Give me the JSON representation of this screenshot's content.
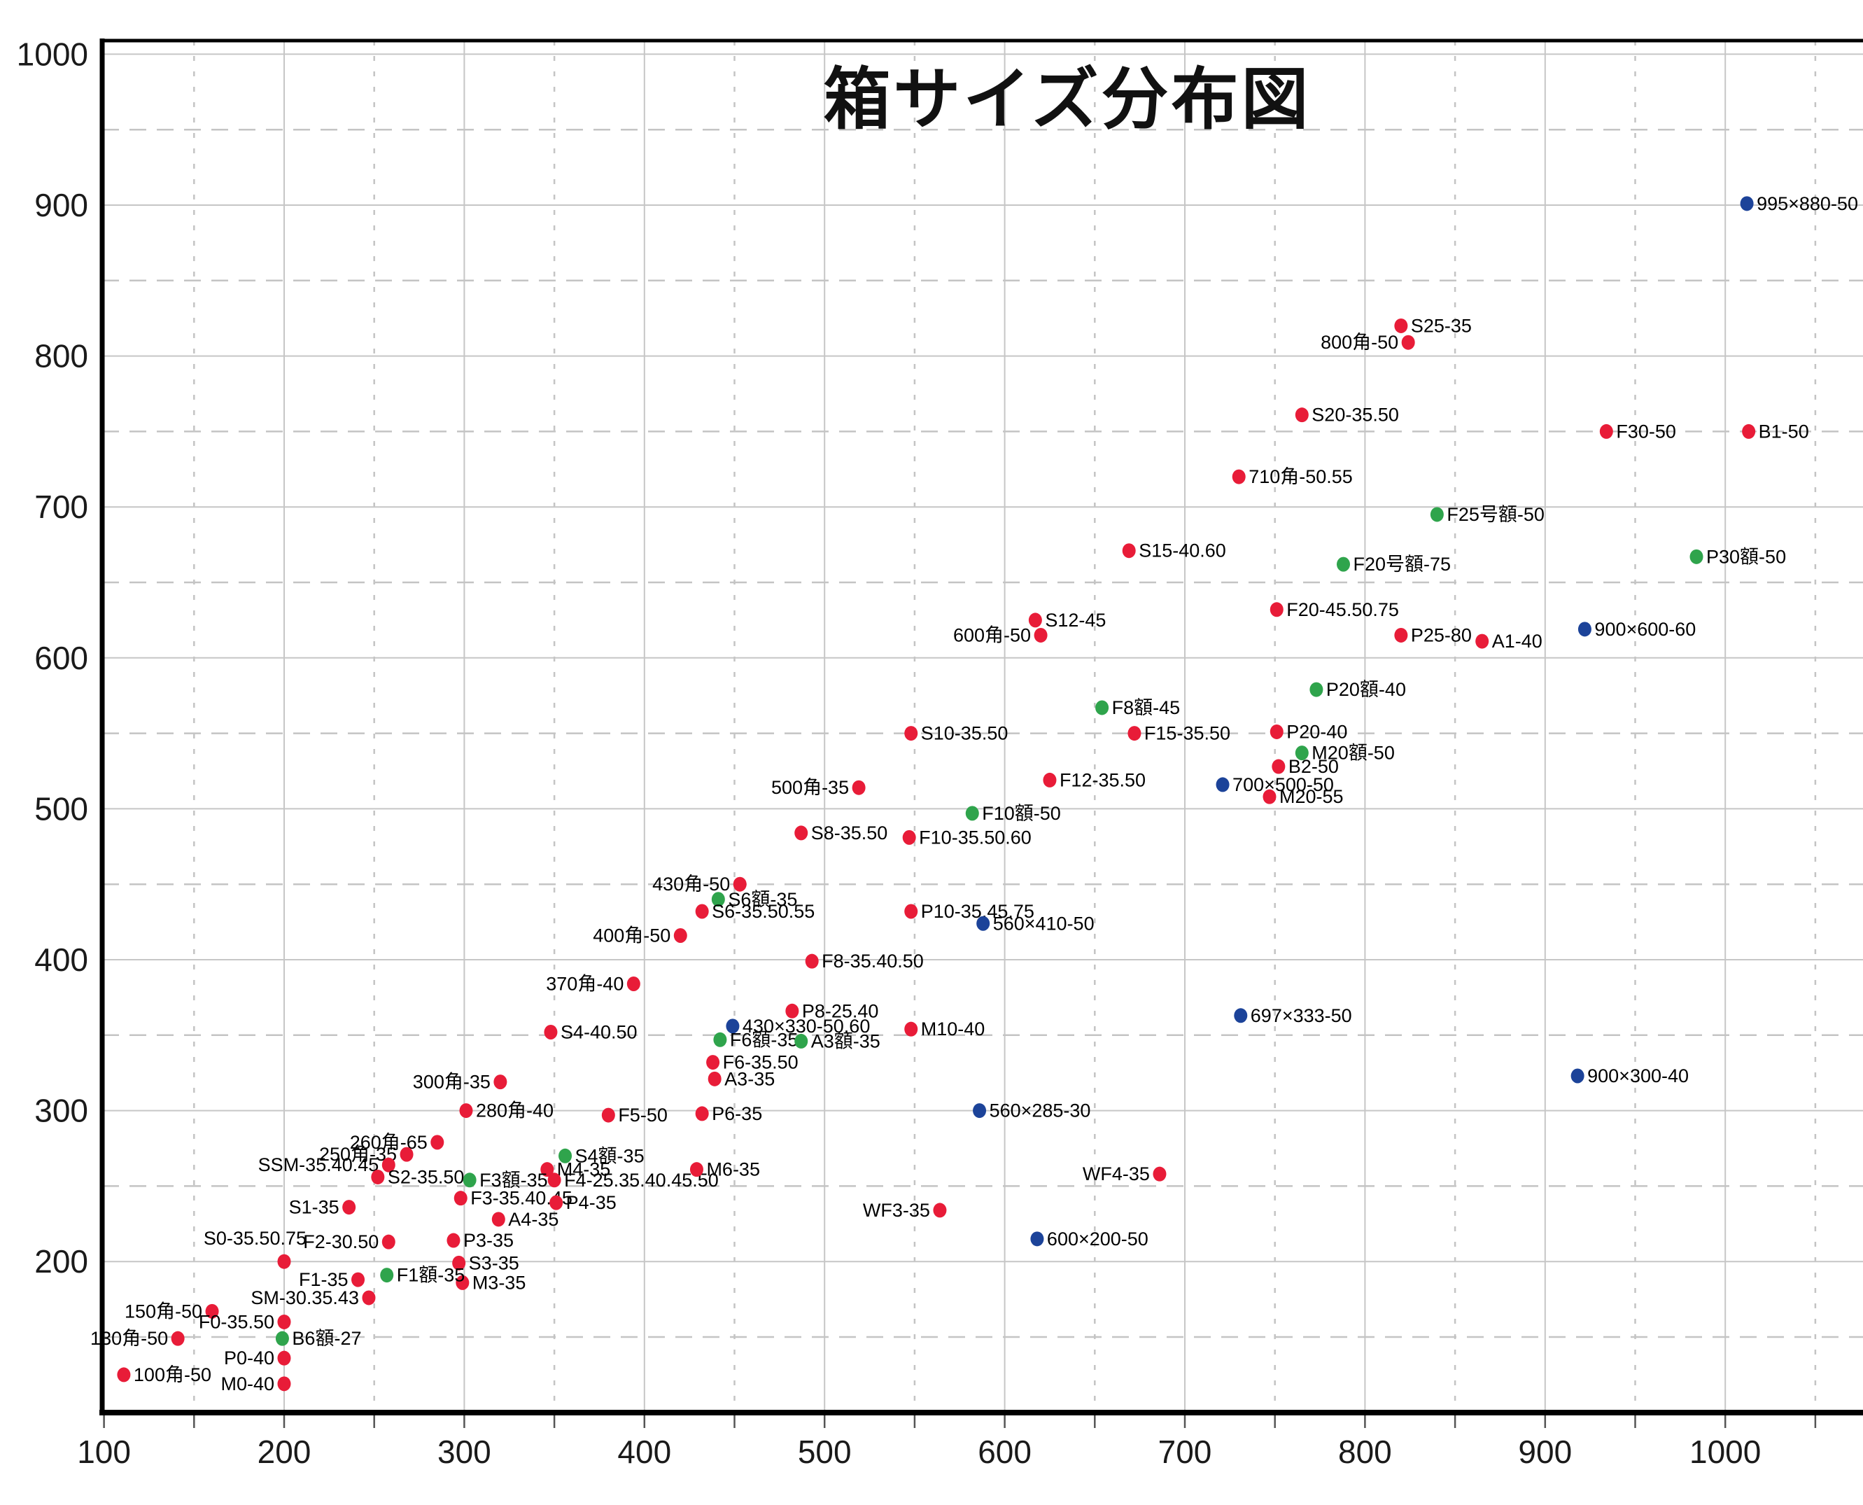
{
  "page": {
    "background": "#ffffff"
  },
  "chart_data": {
    "type": "scatter",
    "title": "箱サイズ分布図",
    "xlabel": "",
    "ylabel": "",
    "xlim": [
      100,
      1076
    ],
    "ylim": [
      100,
      1009
    ],
    "x_ticks": [
      100,
      200,
      300,
      400,
      500,
      600,
      700,
      800,
      900,
      1000
    ],
    "y_ticks": [
      200,
      300,
      400,
      500,
      600,
      700,
      800,
      900,
      1000
    ],
    "minor_grid_step": 50,
    "grid": true,
    "legend_position": "none",
    "colors": {
      "red": "#e81c38",
      "green": "#2fa44c",
      "blue": "#1c4399"
    },
    "points": [
      {
        "label": "995×880-50",
        "x": 1012,
        "y": 901,
        "c": "blue",
        "side": "right"
      },
      {
        "label": "S25-35",
        "x": 820,
        "y": 820,
        "c": "red",
        "side": "right"
      },
      {
        "label": "800角-50",
        "x": 824,
        "y": 809,
        "c": "red",
        "side": "left"
      },
      {
        "label": "S20-35.50",
        "x": 765,
        "y": 761,
        "c": "red",
        "side": "right"
      },
      {
        "label": "710角-50.55",
        "x": 730,
        "y": 720,
        "c": "red",
        "side": "right"
      },
      {
        "label": "F30-50",
        "x": 934,
        "y": 750,
        "c": "red",
        "side": "right"
      },
      {
        "label": "B1-50",
        "x": 1013,
        "y": 750,
        "c": "red",
        "side": "right"
      },
      {
        "label": "F25号額-50",
        "x": 840,
        "y": 695,
        "c": "green",
        "side": "right"
      },
      {
        "label": "P30額-50",
        "x": 984,
        "y": 667,
        "c": "green",
        "side": "right"
      },
      {
        "label": "F20号額-75",
        "x": 788,
        "y": 662,
        "c": "green",
        "side": "right"
      },
      {
        "label": "S15-40.60",
        "x": 669,
        "y": 671,
        "c": "red",
        "side": "right"
      },
      {
        "label": "F20-45.50.75",
        "x": 751,
        "y": 632,
        "c": "red",
        "side": "right"
      },
      {
        "label": "P25-80",
        "x": 820,
        "y": 615,
        "c": "red",
        "side": "right"
      },
      {
        "label": "A1-40",
        "x": 865,
        "y": 611,
        "c": "red",
        "side": "right"
      },
      {
        "label": "900×600-60",
        "x": 922,
        "y": 619,
        "c": "blue",
        "side": "right"
      },
      {
        "label": "P20額-40",
        "x": 773,
        "y": 579,
        "c": "green",
        "side": "right"
      },
      {
        "label": "F8額-45",
        "x": 654,
        "y": 567,
        "c": "green",
        "side": "right"
      },
      {
        "label": "S12-45",
        "x": 617,
        "y": 625,
        "c": "red",
        "side": "right"
      },
      {
        "label": "600角-50",
        "x": 620,
        "y": 615,
        "c": "red",
        "side": "left"
      },
      {
        "label": "S10-35.50",
        "x": 548,
        "y": 550,
        "c": "red",
        "side": "right"
      },
      {
        "label": "F15-35.50",
        "x": 672,
        "y": 550,
        "c": "red",
        "side": "right"
      },
      {
        "label": "P20-40",
        "x": 751,
        "y": 551,
        "c": "red",
        "side": "right"
      },
      {
        "label": "M20額-50",
        "x": 765,
        "y": 537,
        "c": "green",
        "side": "right"
      },
      {
        "label": "B2-50",
        "x": 752,
        "y": 528,
        "c": "red",
        "side": "right"
      },
      {
        "label": "700×500-50",
        "x": 721,
        "y": 516,
        "c": "blue",
        "side": "right"
      },
      {
        "label": "M20-55",
        "x": 747,
        "y": 508,
        "c": "red",
        "side": "right"
      },
      {
        "label": "F12-35.50",
        "x": 625,
        "y": 519,
        "c": "red",
        "side": "right"
      },
      {
        "label": "F10額-50",
        "x": 582,
        "y": 497,
        "c": "green",
        "side": "right"
      },
      {
        "label": "F10-35.50.60",
        "x": 547,
        "y": 481,
        "c": "red",
        "side": "right"
      },
      {
        "label": "500角-35",
        "x": 519,
        "y": 514,
        "c": "red",
        "side": "left"
      },
      {
        "label": "S8-35.50",
        "x": 487,
        "y": 484,
        "c": "red",
        "side": "right"
      },
      {
        "label": "430角-50",
        "x": 453,
        "y": 450,
        "c": "red",
        "side": "left"
      },
      {
        "label": "S6額-35",
        "x": 441,
        "y": 440,
        "c": "green",
        "side": "right"
      },
      {
        "label": "S6-35.50.55",
        "x": 432,
        "y": 432,
        "c": "red",
        "side": "right"
      },
      {
        "label": "400角-50",
        "x": 420,
        "y": 416,
        "c": "red",
        "side": "left"
      },
      {
        "label": "F8-35.40.50",
        "x": 493,
        "y": 399,
        "c": "red",
        "side": "right"
      },
      {
        "label": "370角-40",
        "x": 394,
        "y": 384,
        "c": "red",
        "side": "left"
      },
      {
        "label": "P10-35.45.75",
        "x": 548,
        "y": 432,
        "c": "red",
        "side": "right"
      },
      {
        "label": "560×410-50",
        "x": 588,
        "y": 424,
        "c": "blue",
        "side": "right"
      },
      {
        "label": "P8-25.40",
        "x": 482,
        "y": 366,
        "c": "red",
        "side": "right"
      },
      {
        "label": "430×330-50.60",
        "x": 449,
        "y": 356,
        "c": "blue",
        "side": "right"
      },
      {
        "label": "F6額-35",
        "x": 442,
        "y": 347,
        "c": "green",
        "side": "right"
      },
      {
        "label": "A3額-35",
        "x": 487,
        "y": 346,
        "c": "green",
        "side": "right"
      },
      {
        "label": "M10-40",
        "x": 548,
        "y": 354,
        "c": "red",
        "side": "right"
      },
      {
        "label": "697×333-50",
        "x": 731,
        "y": 363,
        "c": "blue",
        "side": "right"
      },
      {
        "label": "S4-40.50",
        "x": 348,
        "y": 352,
        "c": "red",
        "side": "right"
      },
      {
        "label": "F6-35.50",
        "x": 438,
        "y": 332,
        "c": "red",
        "side": "right"
      },
      {
        "label": "A3-35",
        "x": 439,
        "y": 321,
        "c": "red",
        "side": "right"
      },
      {
        "label": "300角-35",
        "x": 320,
        "y": 319,
        "c": "red",
        "side": "left"
      },
      {
        "label": "280角-40",
        "x": 301,
        "y": 300,
        "c": "red",
        "side": "right"
      },
      {
        "label": "F5-50",
        "x": 380,
        "y": 297,
        "c": "red",
        "side": "right"
      },
      {
        "label": "P6-35",
        "x": 432,
        "y": 298,
        "c": "red",
        "side": "right"
      },
      {
        "label": "560×285-30",
        "x": 586,
        "y": 300,
        "c": "blue",
        "side": "right"
      },
      {
        "label": "900×300-40",
        "x": 918,
        "y": 323,
        "c": "blue",
        "side": "right"
      },
      {
        "label": "260角-65",
        "x": 285,
        "y": 279,
        "c": "red",
        "side": "left"
      },
      {
        "label": "250角-35",
        "x": 268,
        "y": 271,
        "c": "red",
        "side": "left"
      },
      {
        "label": "SSM-35.40.45",
        "x": 258,
        "y": 264,
        "c": "red",
        "side": "left"
      },
      {
        "label": "S2-35.50",
        "x": 252,
        "y": 256,
        "c": "red",
        "side": "right"
      },
      {
        "label": "S4額-35",
        "x": 356,
        "y": 270,
        "c": "green",
        "side": "right"
      },
      {
        "label": "M4-35",
        "x": 346,
        "y": 261,
        "c": "red",
        "side": "right"
      },
      {
        "label": "F3額-35",
        "x": 303,
        "y": 254,
        "c": "green",
        "side": "right"
      },
      {
        "label": "F4-25.35.40.45.50",
        "x": 350,
        "y": 254,
        "c": "red",
        "side": "right"
      },
      {
        "label": "M6-35",
        "x": 429,
        "y": 261,
        "c": "red",
        "side": "right"
      },
      {
        "label": "WF4-35",
        "x": 686,
        "y": 258,
        "c": "red",
        "side": "left"
      },
      {
        "label": "F3-35.40.45",
        "x": 298,
        "y": 242,
        "c": "red",
        "side": "right"
      },
      {
        "label": "P4-35",
        "x": 351,
        "y": 239,
        "c": "red",
        "side": "right"
      },
      {
        "label": "S1-35",
        "x": 236,
        "y": 236,
        "c": "red",
        "side": "left"
      },
      {
        "label": "A4-35",
        "x": 319,
        "y": 228,
        "c": "red",
        "side": "right"
      },
      {
        "label": "WF3-35",
        "x": 564,
        "y": 234,
        "c": "red",
        "side": "left"
      },
      {
        "label": "600×200-50",
        "x": 618,
        "y": 215,
        "c": "blue",
        "side": "right"
      },
      {
        "label": "F2-30.50",
        "x": 258,
        "y": 213,
        "c": "red",
        "side": "left"
      },
      {
        "label": "P3-35",
        "x": 294,
        "y": 214,
        "c": "red",
        "side": "right"
      },
      {
        "label": "S3-35",
        "x": 297,
        "y": 199,
        "c": "red",
        "side": "right"
      },
      {
        "label": "M3-35",
        "x": 299,
        "y": 186,
        "c": "red",
        "side": "right"
      },
      {
        "label": "S0-35.50.75",
        "x": 200,
        "y": 200,
        "c": "red",
        "side": "above"
      },
      {
        "label": "F1-35",
        "x": 241,
        "y": 188,
        "c": "red",
        "side": "left"
      },
      {
        "label": "F1額-35",
        "x": 257,
        "y": 191,
        "c": "green",
        "side": "right"
      },
      {
        "label": "SM-30.35.43",
        "x": 247,
        "y": 176,
        "c": "red",
        "side": "left"
      },
      {
        "label": "150角-50",
        "x": 160,
        "y": 167,
        "c": "red",
        "side": "left"
      },
      {
        "label": "F0-35.50",
        "x": 200,
        "y": 160,
        "c": "red",
        "side": "left"
      },
      {
        "label": "130角-50",
        "x": 141,
        "y": 149,
        "c": "red",
        "side": "left"
      },
      {
        "label": "B6額-27",
        "x": 199,
        "y": 149,
        "c": "green",
        "side": "right"
      },
      {
        "label": "P0-40",
        "x": 200,
        "y": 136,
        "c": "red",
        "side": "left"
      },
      {
        "label": "100角-50",
        "x": 111,
        "y": 125,
        "c": "red",
        "side": "right"
      },
      {
        "label": "M0-40",
        "x": 200,
        "y": 119,
        "c": "red",
        "side": "left"
      }
    ]
  }
}
